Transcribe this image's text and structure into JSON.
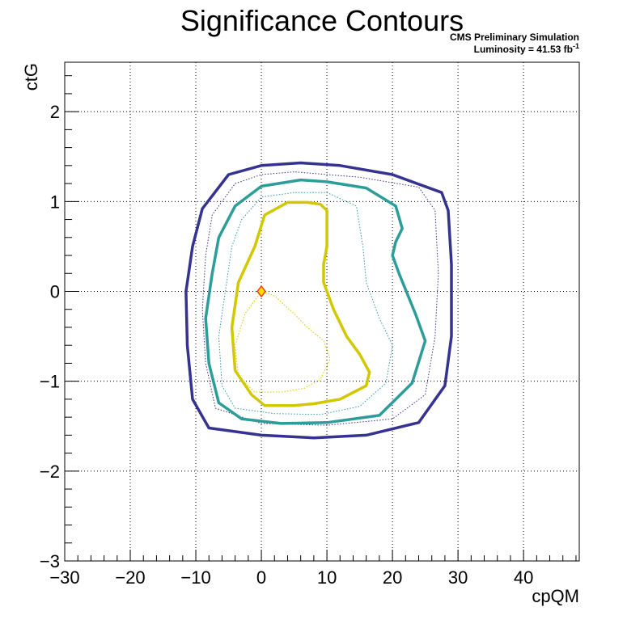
{
  "chart_data": {
    "type": "contour",
    "title": "Significance Contours",
    "annotation_line1": "CMS Preliminary Simulation",
    "annotation_line2": "Luminosity = 41.53 fb",
    "annotation_sup": "-1",
    "xlabel": "cpQM",
    "ylabel": "ctG",
    "xlim": [
      -30,
      48.5
    ],
    "ylim": [
      -3,
      2.55
    ],
    "xticks": [
      -30,
      -20,
      -10,
      0,
      10,
      20,
      30,
      40
    ],
    "xtick_labels": [
      "−30",
      "−20",
      "−10",
      "0",
      "10",
      "20",
      "30",
      "40"
    ],
    "yticks": [
      -3,
      -2,
      -1,
      0,
      1,
      2
    ],
    "ytick_labels": [
      "−3",
      "−2",
      "−1",
      "0",
      "1",
      "2"
    ],
    "grid": true,
    "best_fit": {
      "x": 0,
      "y": 0
    },
    "colors": {
      "outer": "#35338f",
      "middle": "#2c9d98",
      "inner": "#d1c800",
      "marker_fill": "#ffdd00",
      "marker_stroke": "#e8451c"
    },
    "series": [
      {
        "color_key": "outer",
        "style": "solid",
        "points": [
          [
            6,
            1.43
          ],
          [
            0,
            1.4
          ],
          [
            -5,
            1.3
          ],
          [
            -9,
            0.92
          ],
          [
            -10.5,
            0.5
          ],
          [
            -11.5,
            0
          ],
          [
            -11.3,
            -0.6
          ],
          [
            -10.5,
            -1.2
          ],
          [
            -8,
            -1.52
          ],
          [
            0,
            -1.6
          ],
          [
            8,
            -1.63
          ],
          [
            16,
            -1.6
          ],
          [
            24,
            -1.46
          ],
          [
            28,
            -1.05
          ],
          [
            29,
            -0.5
          ],
          [
            29,
            0.3
          ],
          [
            28.5,
            0.9
          ],
          [
            27.5,
            1.1
          ],
          [
            20,
            1.3
          ],
          [
            12,
            1.4
          ],
          [
            6,
            1.43
          ]
        ]
      },
      {
        "color_key": "outer",
        "style": "dotted",
        "points": [
          [
            5,
            1.33
          ],
          [
            0,
            1.3
          ],
          [
            -4,
            1.2
          ],
          [
            -7.5,
            0.85
          ],
          [
            -8.5,
            0.4
          ],
          [
            -9,
            -0.2
          ],
          [
            -8.5,
            -0.8
          ],
          [
            -7,
            -1.3
          ],
          [
            0,
            -1.47
          ],
          [
            10,
            -1.49
          ],
          [
            20,
            -1.42
          ],
          [
            25,
            -1.15
          ],
          [
            26.5,
            -0.5
          ],
          [
            27,
            0.2
          ],
          [
            26.5,
            0.9
          ],
          [
            24,
            1.16
          ],
          [
            15,
            1.27
          ],
          [
            5,
            1.33
          ]
        ]
      },
      {
        "color_key": "middle",
        "style": "solid",
        "points": [
          [
            6,
            1.24
          ],
          [
            0,
            1.17
          ],
          [
            -4,
            0.95
          ],
          [
            -6.5,
            0.6
          ],
          [
            -7.5,
            0.2
          ],
          [
            -8.5,
            -0.3
          ],
          [
            -8,
            -0.8
          ],
          [
            -6.5,
            -1.24
          ],
          [
            -3,
            -1.42
          ],
          [
            3,
            -1.47
          ],
          [
            10,
            -1.46
          ],
          [
            18,
            -1.38
          ],
          [
            23,
            -1.02
          ],
          [
            25,
            -0.55
          ],
          [
            23.5,
            -0.25
          ],
          [
            21,
            0.2
          ],
          [
            20,
            0.4
          ],
          [
            20.5,
            0.55
          ],
          [
            21.5,
            0.7
          ],
          [
            20.5,
            0.95
          ],
          [
            16,
            1.15
          ],
          [
            10,
            1.22
          ],
          [
            6,
            1.24
          ]
        ]
      },
      {
        "color_key": "middle",
        "style": "dotted",
        "points": [
          [
            5,
            1.1
          ],
          [
            0,
            1.05
          ],
          [
            -3,
            0.8
          ],
          [
            -4.5,
            0.5
          ],
          [
            -5.5,
            0
          ],
          [
            -6.5,
            -0.5
          ],
          [
            -6,
            -1.05
          ],
          [
            -4,
            -1.3
          ],
          [
            2,
            -1.36
          ],
          [
            9,
            -1.37
          ],
          [
            15,
            -1.28
          ],
          [
            19,
            -1.02
          ],
          [
            20,
            -0.6
          ],
          [
            18,
            -0.3
          ],
          [
            16,
            0.1
          ],
          [
            15.5,
            0.5
          ],
          [
            14.5,
            0.95
          ],
          [
            10,
            1.1
          ],
          [
            5,
            1.1
          ]
        ]
      },
      {
        "color_key": "inner",
        "style": "solid",
        "points": [
          [
            7,
            0.99
          ],
          [
            4,
            0.99
          ],
          [
            0.5,
            0.85
          ],
          [
            -1,
            0.5
          ],
          [
            -3.5,
            0.1
          ],
          [
            -4.5,
            -0.4
          ],
          [
            -4,
            -0.88
          ],
          [
            -1.5,
            -1.15
          ],
          [
            0.5,
            -1.27
          ],
          [
            5,
            -1.27
          ],
          [
            8,
            -1.25
          ],
          [
            12,
            -1.2
          ],
          [
            16,
            -1.05
          ],
          [
            16.5,
            -0.9
          ],
          [
            15,
            -0.7
          ],
          [
            13,
            -0.5
          ],
          [
            11,
            -0.2
          ],
          [
            9.5,
            0.1
          ],
          [
            9.5,
            0.3
          ],
          [
            10,
            0.5
          ],
          [
            10,
            0.9
          ],
          [
            9,
            0.97
          ],
          [
            7,
            0.99
          ]
        ]
      },
      {
        "color_key": "inner",
        "style": "dotted",
        "points": [
          [
            0,
            0
          ],
          [
            -2.5,
            -0.25
          ],
          [
            -4,
            -0.6
          ],
          [
            -3.5,
            -0.95
          ],
          [
            -1,
            -1.12
          ],
          [
            3,
            -1.12
          ],
          [
            6.5,
            -1.08
          ],
          [
            9,
            -0.98
          ],
          [
            10.5,
            -0.75
          ],
          [
            9.5,
            -0.55
          ],
          [
            7,
            -0.4
          ],
          [
            5,
            -0.25
          ],
          [
            2,
            -0.05
          ],
          [
            0,
            0
          ]
        ]
      }
    ]
  }
}
